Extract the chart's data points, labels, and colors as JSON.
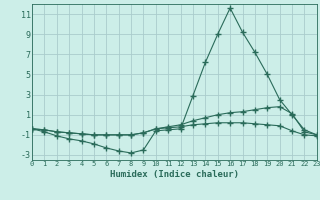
{
  "title": "",
  "xlabel": "Humidex (Indice chaleur)",
  "bg_color": "#cceee8",
  "grid_color": "#aacccc",
  "line_color": "#2a6b5a",
  "xlim": [
    0,
    23
  ],
  "ylim": [
    -3.5,
    12
  ],
  "xticks": [
    0,
    1,
    2,
    3,
    4,
    5,
    6,
    7,
    8,
    9,
    10,
    11,
    12,
    13,
    14,
    15,
    16,
    17,
    18,
    19,
    20,
    21,
    22,
    23
  ],
  "yticks": [
    -3,
    -1,
    1,
    3,
    5,
    7,
    9,
    11
  ],
  "line1_x": [
    0,
    1,
    2,
    3,
    4,
    5,
    6,
    7,
    8,
    9,
    10,
    11,
    12,
    13,
    14,
    15,
    16,
    17,
    18,
    19,
    20,
    21,
    22,
    23
  ],
  "line1_y": [
    -0.4,
    -0.7,
    -1.1,
    -1.4,
    -1.6,
    -1.9,
    -2.3,
    -2.6,
    -2.8,
    -2.5,
    -0.6,
    -0.5,
    -0.4,
    2.9,
    6.2,
    9.0,
    11.6,
    9.2,
    7.2,
    5.0,
    2.5,
    1.0,
    -0.5,
    -1.0
  ],
  "line2_x": [
    0,
    1,
    2,
    3,
    4,
    5,
    6,
    7,
    8,
    9,
    10,
    11,
    12,
    13,
    14,
    15,
    16,
    17,
    18,
    19,
    20,
    21,
    22,
    23
  ],
  "line2_y": [
    -0.4,
    -0.5,
    -0.7,
    -0.8,
    -0.9,
    -1.0,
    -1.0,
    -1.0,
    -1.0,
    -0.8,
    -0.4,
    -0.2,
    0.0,
    0.4,
    0.7,
    1.0,
    1.2,
    1.3,
    1.5,
    1.7,
    1.8,
    1.1,
    -0.7,
    -1.0
  ],
  "line3_x": [
    0,
    1,
    2,
    3,
    4,
    5,
    6,
    7,
    8,
    9,
    10,
    11,
    12,
    13,
    14,
    15,
    16,
    17,
    18,
    19,
    20,
    21,
    22,
    23
  ],
  "line3_y": [
    -0.4,
    -0.5,
    -0.7,
    -0.8,
    -0.9,
    -1.0,
    -1.0,
    -1.0,
    -1.0,
    -0.8,
    -0.4,
    -0.3,
    -0.2,
    0.0,
    0.1,
    0.2,
    0.2,
    0.2,
    0.1,
    0.0,
    -0.1,
    -0.6,
    -1.0,
    -1.1
  ]
}
